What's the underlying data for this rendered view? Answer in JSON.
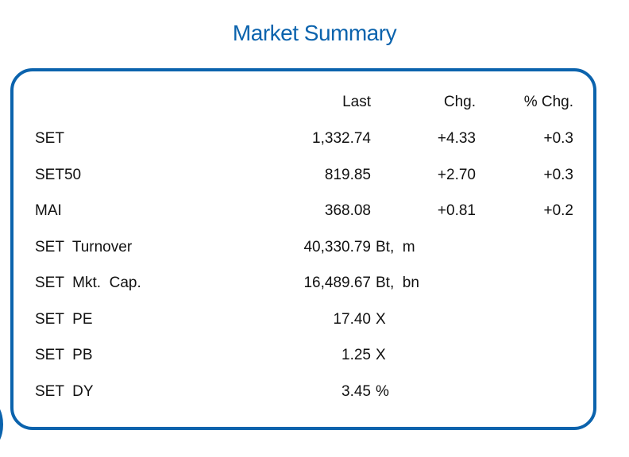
{
  "title": "Market Summary",
  "headers": {
    "last": "Last",
    "chg": "Chg.",
    "pct": "% Chg."
  },
  "indices": [
    {
      "name": "SET",
      "last": "1,332.74",
      "chg": "+4.33",
      "pct": "+0.3"
    },
    {
      "name": "SET50",
      "last": "819.85",
      "chg": "+2.70",
      "pct": "+0.3"
    },
    {
      "name": "MAI",
      "last": "368.08",
      "chg": "+0.81",
      "pct": "+0.2"
    }
  ],
  "stats": [
    {
      "name": "SET  Turnover",
      "value": "40,330.79",
      "unit": "Bt,  m"
    },
    {
      "name": "SET  Mkt.  Cap.",
      "value": "16,489.67",
      "unit": "Bt,  bn"
    },
    {
      "name": "SET  PE",
      "value": "17.40",
      "unit": "X"
    },
    {
      "name": "SET  PB",
      "value": "1.25",
      "unit": "X"
    },
    {
      "name": "SET  DY",
      "value": "3.45",
      "unit": "%"
    }
  ],
  "colors": {
    "accent": "#0b63ad"
  }
}
